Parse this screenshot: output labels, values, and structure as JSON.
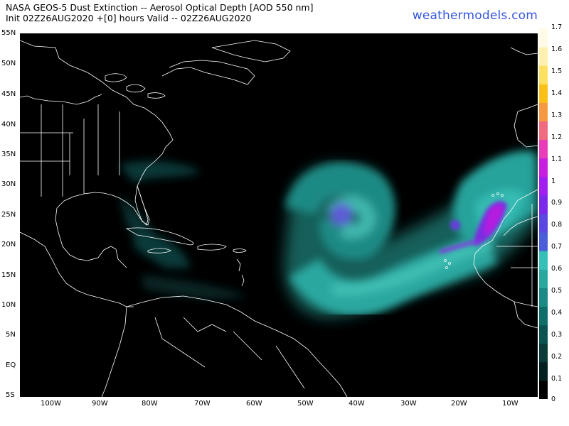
{
  "header": {
    "title_line1": "NASA GEOS-5 Dust Extinction -- Aerosol Optical Depth [AOD 550 nm]",
    "title_line2": "Init 02Z26AUG2020 +[0] hours Valid -- 02Z26AUG2020",
    "brand": "weathermodels.com"
  },
  "map": {
    "lat_labels": [
      "55N",
      "50N",
      "45N",
      "40N",
      "35N",
      "30N",
      "25N",
      "20N",
      "15N",
      "10N",
      "5N",
      "EQ",
      "5S"
    ],
    "lon_labels": [
      "100W",
      "90W",
      "80W",
      "70W",
      "60W",
      "50W",
      "40W",
      "30W",
      "20W",
      "10W"
    ],
    "background": "#000000",
    "border_color": "#ffffff"
  },
  "colorbar": {
    "labels": [
      "1.7",
      "1.6",
      "1.5",
      "1.4",
      "1.3",
      "1.2",
      "1.1",
      "1",
      "0.9",
      "0.8",
      "0.7",
      "0.6",
      "0.5",
      "0.4",
      "0.3",
      "0.2",
      "0.1",
      "0"
    ],
    "colors": [
      "#000000",
      "#04201e",
      "#0a3a3a",
      "#0c5454",
      "#106e6a",
      "#1a8a84",
      "#2aa8a0",
      "#34c0b6",
      "#4a5ed8",
      "#5a48e0",
      "#7a2ae8",
      "#a020f0",
      "#c81ee0",
      "#e83cb8",
      "#f06a80",
      "#f59a40",
      "#fbc018",
      "#fde060",
      "#fff0b0",
      "#fffbe6"
    ]
  },
  "chart_data": {
    "type": "heatmap",
    "variable": "Aerosol Optical Depth [AOD 550 nm]",
    "colorbar_range": [
      0,
      1.7
    ],
    "features": [
      {
        "name": "dust swirl",
        "center_lon": -43,
        "center_lat": 25,
        "aod": 0.55
      },
      {
        "name": "dust plume core",
        "center_lon": -14,
        "center_lat": 24,
        "aod": 0.8
      },
      {
        "name": "dust band",
        "lon_range": [
          -48,
          -18
        ],
        "lat_range": [
          15,
          21
        ],
        "aod": 0.5
      }
    ]
  }
}
